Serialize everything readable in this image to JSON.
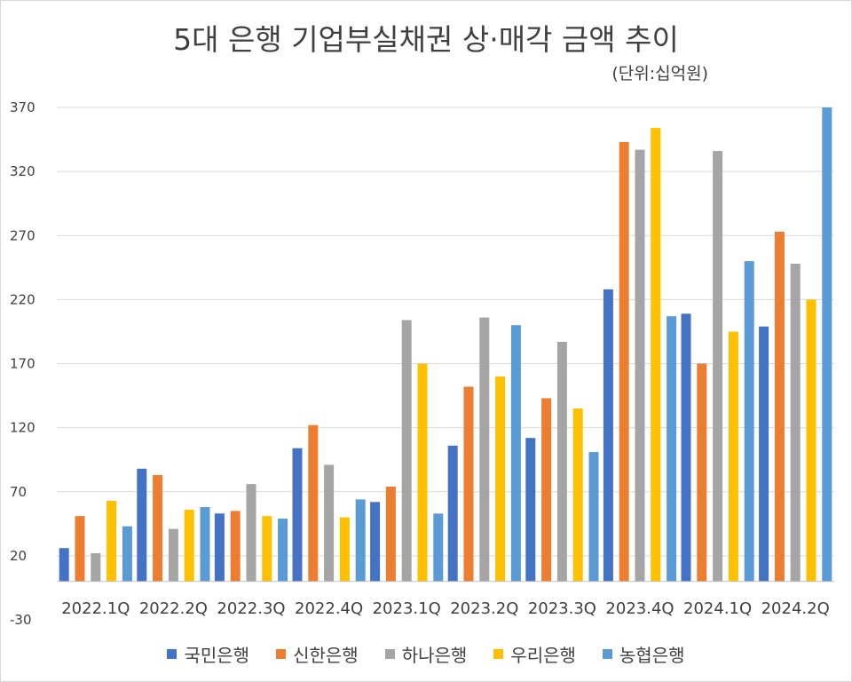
{
  "chart_data": {
    "type": "bar",
    "title": "5대 은행 기업부실채권 상·매각 금액 추이",
    "subtitle": "(단위:십억원)",
    "xlabel": "",
    "ylabel": "",
    "ylim": [
      -30,
      370
    ],
    "yticks": [
      -30,
      20,
      70,
      120,
      170,
      220,
      270,
      320,
      370
    ],
    "grid": true,
    "legend_position": "bottom",
    "categories": [
      "2022.1Q",
      "2022.2Q",
      "2022.3Q",
      "2022.4Q",
      "2023.1Q",
      "2023.2Q",
      "2023.3Q",
      "2023.4Q",
      "2024.1Q",
      "2024.2Q"
    ],
    "series": [
      {
        "name": "국민은행",
        "color": "#4472c4",
        "values": [
          26,
          88,
          53,
          104,
          62,
          106,
          112,
          228,
          209,
          199
        ]
      },
      {
        "name": "신한은행",
        "color": "#ed7d31",
        "values": [
          51,
          83,
          55,
          122,
          74,
          152,
          143,
          343,
          170,
          273
        ]
      },
      {
        "name": "하나은행",
        "color": "#a5a5a5",
        "values": [
          22,
          41,
          76,
          91,
          204,
          206,
          187,
          337,
          336,
          248
        ]
      },
      {
        "name": "우리은행",
        "color": "#ffc000",
        "values": [
          63,
          56,
          51,
          50,
          170,
          160,
          135,
          354,
          195,
          220
        ]
      },
      {
        "name": "농협은행",
        "color": "#5b9bd5",
        "values": [
          43,
          58,
          49,
          64,
          53,
          200,
          101,
          207,
          250,
          370
        ]
      }
    ]
  }
}
